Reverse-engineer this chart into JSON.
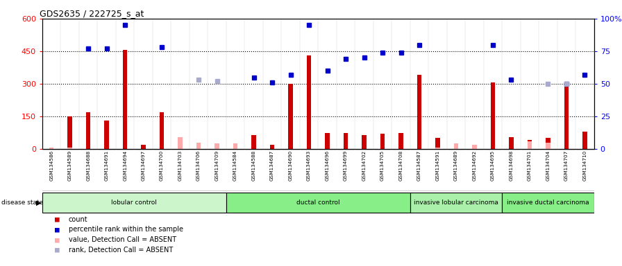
{
  "title": "GDS2635 / 222725_s_at",
  "samples": [
    "GSM134586",
    "GSM134589",
    "GSM134688",
    "GSM134691",
    "GSM134694",
    "GSM134697",
    "GSM134700",
    "GSM134703",
    "GSM134706",
    "GSM134709",
    "GSM134584",
    "GSM134588",
    "GSM134687",
    "GSM134690",
    "GSM134693",
    "GSM134696",
    "GSM134699",
    "GSM134702",
    "GSM134705",
    "GSM134708",
    "GSM134587",
    "GSM134591",
    "GSM134689",
    "GSM134692",
    "GSM134695",
    "GSM134698",
    "GSM134701",
    "GSM134704",
    "GSM134707",
    "GSM134710"
  ],
  "counts": [
    5,
    150,
    170,
    130,
    455,
    20,
    170,
    20,
    20,
    15,
    20,
    65,
    20,
    300,
    430,
    75,
    75,
    65,
    70,
    75,
    340,
    50,
    10,
    5,
    305,
    55,
    40,
    50,
    300,
    80
  ],
  "ranks_pct": [
    null,
    null,
    77,
    77,
    95,
    null,
    78,
    null,
    null,
    null,
    null,
    55,
    51,
    57,
    95,
    60,
    69,
    70,
    74,
    74,
    80,
    null,
    null,
    null,
    80,
    53,
    null,
    null,
    50,
    57
  ],
  "absent_counts": [
    8,
    5,
    null,
    null,
    null,
    null,
    null,
    55,
    30,
    25,
    25,
    null,
    null,
    null,
    null,
    null,
    null,
    null,
    null,
    null,
    null,
    5,
    25,
    18,
    null,
    null,
    35,
    30,
    null,
    null
  ],
  "absent_ranks_pct": [
    null,
    null,
    null,
    null,
    null,
    null,
    null,
    null,
    53,
    52,
    null,
    null,
    null,
    null,
    null,
    null,
    null,
    null,
    null,
    null,
    null,
    null,
    null,
    null,
    null,
    null,
    null,
    50,
    50,
    null
  ],
  "groups": [
    {
      "label": "lobular control",
      "start": 0,
      "end": 10,
      "color": "#ccf5cc"
    },
    {
      "label": "ductal control",
      "start": 10,
      "end": 20,
      "color": "#88ee88"
    },
    {
      "label": "invasive lobular carcinoma",
      "start": 20,
      "end": 25,
      "color": "#aaf0aa"
    },
    {
      "label": "invasive ductal carcinoma",
      "start": 25,
      "end": 30,
      "color": "#88ee88"
    }
  ],
  "ylim_left": [
    0,
    600
  ],
  "ylim_right": [
    0,
    100
  ],
  "yticks_left": [
    0,
    150,
    300,
    450,
    600
  ],
  "yticks_right": [
    0,
    25,
    50,
    75,
    100
  ],
  "hlines": [
    150,
    300,
    450
  ],
  "bar_color": "#cc0000",
  "rank_color": "#0000cc",
  "absent_bar_color": "#ffaaaa",
  "absent_rank_color": "#aaaacc",
  "plot_bg": "#ffffff",
  "label_bg": "#cccccc"
}
